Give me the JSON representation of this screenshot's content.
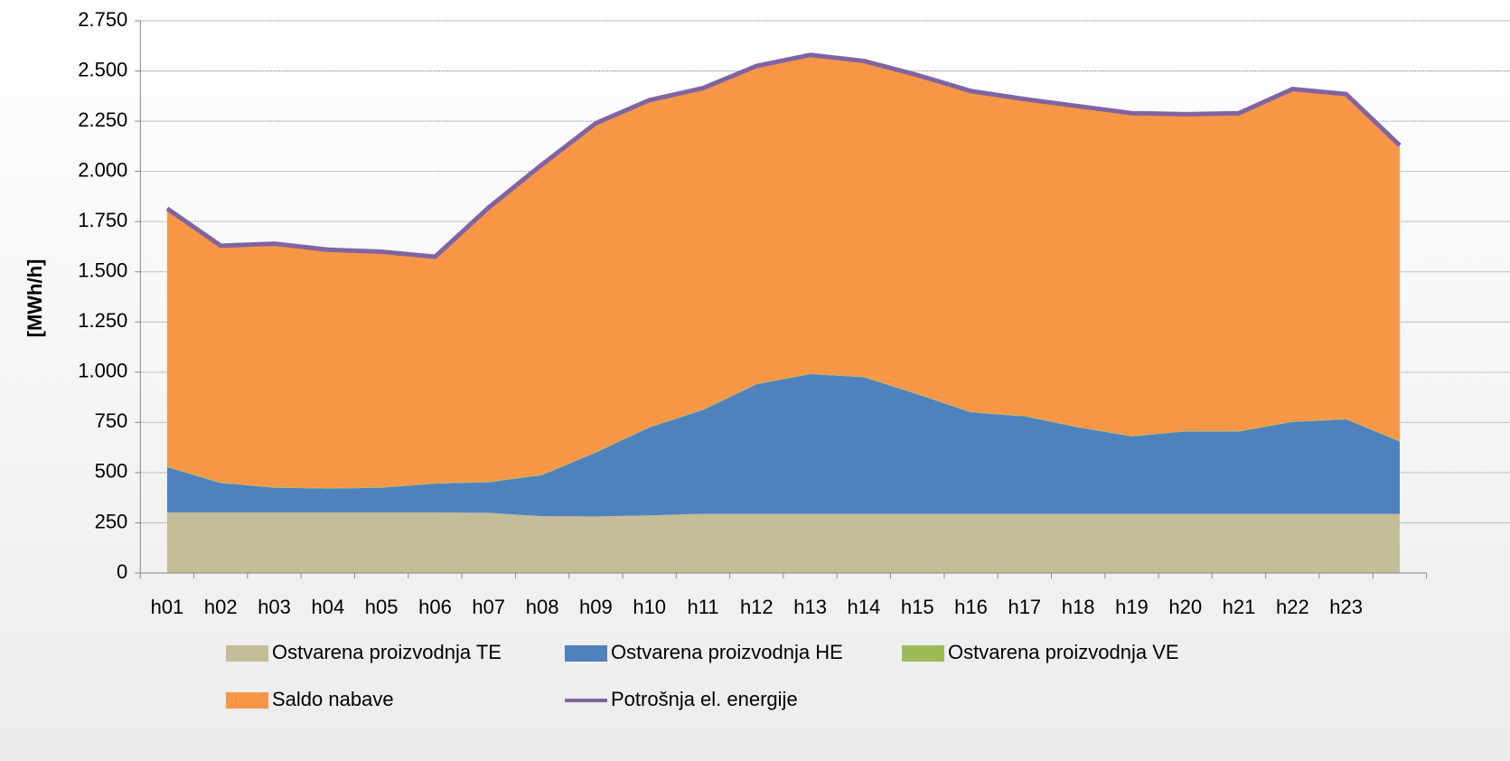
{
  "chart_data": {
    "type": "area",
    "y_label": "[MWh/h]",
    "categories": [
      "h01",
      "h02",
      "h03",
      "h04",
      "h05",
      "h06",
      "h07",
      "h08",
      "h09",
      "h10",
      "h11",
      "h12",
      "h13",
      "h14",
      "h15",
      "h16",
      "h17",
      "h18",
      "h19",
      "h20",
      "h21",
      "h22",
      "h23",
      null
    ],
    "series": [
      {
        "name": "Ostvarena proizvodnja TE",
        "color": "#c4bd97",
        "type": "area",
        "values": [
          302,
          302,
          302,
          302,
          302,
          302,
          300,
          283,
          282,
          287,
          295,
          295,
          295,
          295,
          295,
          295,
          295,
          295,
          295,
          295,
          295,
          295,
          295,
          295
        ]
      },
      {
        "name": "Ostvarena proizvodnja HE",
        "color": "#4f81bd",
        "type": "area",
        "values": [
          225,
          146,
          123,
          118,
          123,
          143,
          152,
          205,
          318,
          438,
          517,
          645,
          695,
          680,
          595,
          505,
          485,
          430,
          385,
          410,
          410,
          457,
          470,
          360
        ]
      },
      {
        "name": "Ostvarena proizvodnja VE",
        "color": "#9bbb59",
        "type": "area",
        "values": [
          3,
          3,
          3,
          3,
          3,
          3,
          3,
          3,
          3,
          3,
          3,
          3,
          3,
          3,
          3,
          3,
          3,
          3,
          3,
          3,
          3,
          3,
          3,
          3
        ]
      },
      {
        "name": "Saldo nabave",
        "color": "#f79646",
        "type": "area",
        "values": [
          1285,
          1179,
          1212,
          1187,
          1172,
          1127,
          1365,
          1544,
          1637,
          1627,
          1600,
          1582,
          1587,
          1572,
          1587,
          1597,
          1577,
          1597,
          1607,
          1577,
          1582,
          1655,
          1617,
          1472
        ]
      },
      {
        "name": "Potrošnja el. energije",
        "color": "#8064a2",
        "type": "line",
        "values": [
          1815,
          1630,
          1640,
          1610,
          1600,
          1575,
          1820,
          2035,
          2240,
          2355,
          2415,
          2525,
          2580,
          2550,
          2480,
          2400,
          2360,
          2325,
          2290,
          2285,
          2290,
          2410,
          2385,
          2130
        ]
      }
    ],
    "ylim": [
      0,
      2750
    ],
    "yticks": [
      0,
      250,
      500,
      750,
      {
        "value": 1000,
        "label": "1.000"
      },
      {
        "value": 1250,
        "label": "1.250"
      },
      {
        "value": 1500,
        "label": "1.500"
      },
      {
        "value": 1750,
        "label": "1.750"
      },
      {
        "value": 2000,
        "label": "2.000"
      },
      {
        "value": 2250,
        "label": "2.250"
      },
      {
        "value": 2500,
        "label": "2.500"
      },
      {
        "value": 2750,
        "label": "2.750"
      }
    ],
    "grid": true,
    "legend": "bottom"
  }
}
